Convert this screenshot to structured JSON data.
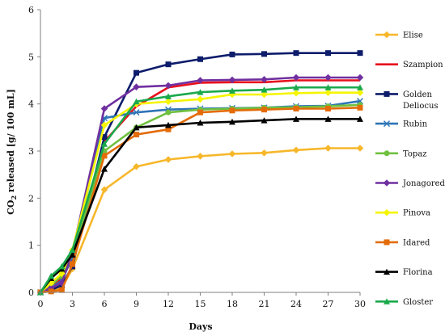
{
  "chart_data": {
    "type": "line",
    "xlabel": "Days",
    "ylabel": {
      "prefix": "CO",
      "sub": "2",
      "suffix": " released [g/ 100 mL]"
    },
    "x": [
      0,
      1,
      2,
      3,
      6,
      9,
      12,
      15,
      18,
      21,
      24,
      27,
      30
    ],
    "xticks": [
      0,
      3,
      6,
      9,
      12,
      15,
      18,
      21,
      24,
      27,
      30
    ],
    "xlim": [
      0,
      30
    ],
    "ylim": [
      0,
      6
    ],
    "yticks": [
      0,
      1,
      2,
      3,
      4,
      5,
      6
    ],
    "grid": false,
    "legend_position": "right",
    "series": [
      {
        "name": "Elise",
        "color": "#F7B72B",
        "marker": "diamond",
        "values": [
          0,
          0.05,
          0.1,
          0.5,
          2.18,
          2.67,
          2.82,
          2.89,
          2.94,
          2.96,
          3.02,
          3.06,
          3.06
        ]
      },
      {
        "name": "Szampion",
        "color": "#E8101D",
        "marker": "none",
        "values": [
          0,
          0.12,
          0.3,
          0.7,
          3.2,
          3.95,
          4.35,
          4.45,
          4.46,
          4.46,
          4.5,
          4.5,
          4.5
        ]
      },
      {
        "name": "Golden Deliocus",
        "label_lines": [
          "Golden",
          "Deliocus"
        ],
        "color": "#0D1C6B",
        "marker": "square",
        "values": [
          0,
          0.05,
          0.15,
          0.55,
          3.3,
          4.66,
          4.84,
          4.95,
          5.05,
          5.06,
          5.08,
          5.08,
          5.08
        ]
      },
      {
        "name": "Rubin",
        "color": "#2E75B6",
        "marker": "x",
        "values": [
          0,
          0.1,
          0.25,
          0.75,
          3.7,
          3.82,
          3.88,
          3.9,
          3.91,
          3.92,
          3.95,
          3.96,
          4.06
        ]
      },
      {
        "name": "Topaz",
        "color": "#70C040",
        "marker": "circle",
        "values": [
          0,
          0.15,
          0.35,
          0.8,
          3.0,
          3.5,
          3.82,
          3.88,
          3.9,
          3.92,
          3.93,
          3.95,
          3.98
        ]
      },
      {
        "name": "Jonagored",
        "color": "#7030A0",
        "marker": "diamond",
        "values": [
          0,
          0.1,
          0.2,
          0.85,
          3.9,
          4.36,
          4.39,
          4.5,
          4.51,
          4.52,
          4.56,
          4.56,
          4.56
        ]
      },
      {
        "name": "Pinova",
        "color": "#F5F500",
        "marker": "diamond",
        "values": [
          0,
          0.2,
          0.4,
          0.9,
          3.55,
          4.0,
          4.05,
          4.1,
          4.2,
          4.2,
          4.23,
          4.24,
          4.24
        ]
      },
      {
        "name": "Idared",
        "color": "#E36C09",
        "marker": "square",
        "values": [
          0,
          0.02,
          0.05,
          0.6,
          2.9,
          3.35,
          3.46,
          3.82,
          3.86,
          3.88,
          3.9,
          3.9,
          3.92
        ]
      },
      {
        "name": "Florina",
        "color": "#000000",
        "marker": "triangle",
        "values": [
          0,
          0.3,
          0.5,
          0.8,
          2.62,
          3.5,
          3.55,
          3.6,
          3.62,
          3.65,
          3.68,
          3.68,
          3.68
        ]
      },
      {
        "name": "Gloster",
        "color": "#1BA94C",
        "marker": "triangle",
        "values": [
          0,
          0.35,
          0.55,
          0.9,
          3.15,
          4.05,
          4.16,
          4.25,
          4.28,
          4.3,
          4.35,
          4.35,
          4.35
        ]
      }
    ]
  }
}
